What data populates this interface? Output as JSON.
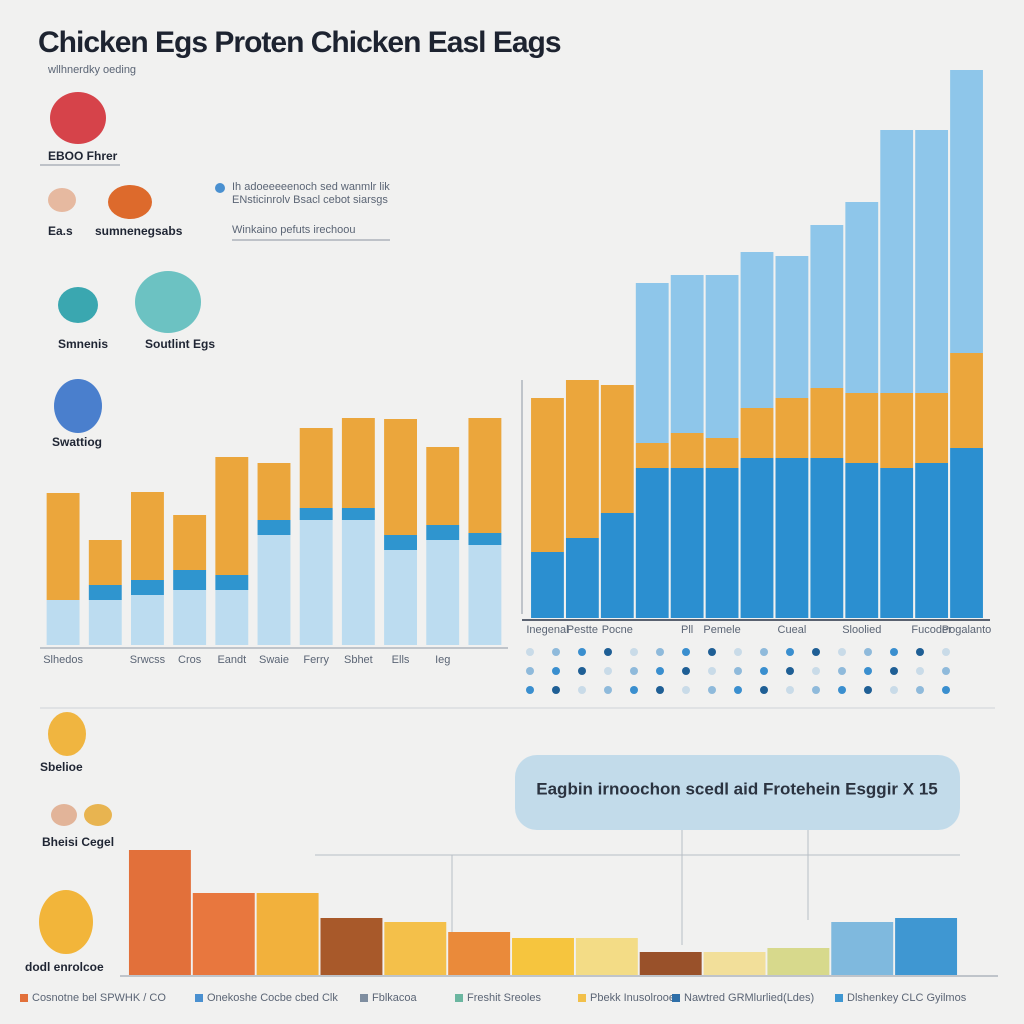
{
  "header": {
    "title": "Chicken Egs Proten Chicken Easl Eags",
    "subtitle": "wllhnerdky oeding"
  },
  "key": {
    "items": [
      "Ih adoeeeeenoch sed wanmlr lik",
      "ENsticinrolv Bsacl cebot siarsgs",
      "Winkaino pefuts irechoou"
    ]
  },
  "eggs": {
    "labels": [
      "EBOO Fhrer",
      "Ea.s",
      "sumnenegsabs",
      "Smnenis",
      "Soutlint Egs",
      "Swattiog",
      "Sbelioe",
      "Bheisi Cegel",
      "dodl enrolcoe"
    ]
  },
  "chart_data": [
    {
      "type": "bar",
      "stacked": true,
      "categories": [
        "Slhedos",
        null,
        "Srwcss",
        "Cros",
        "Eandt",
        "Swaie",
        "Ferry",
        "Sbhet",
        "Ells",
        "Ieg",
        null
      ],
      "series": [
        {
          "color": "#bcdcf0",
          "values": [
            45,
            45,
            50,
            55,
            55,
            110,
            125,
            125,
            95,
            105,
            100
          ]
        },
        {
          "color": "#2f95cf",
          "values": [
            0,
            15,
            15,
            20,
            15,
            15,
            12,
            12,
            15,
            15,
            12
          ]
        },
        {
          "color": "#eba63c",
          "values": [
            107,
            45,
            88,
            55,
            118,
            57,
            80,
            90,
            116,
            78,
            115
          ]
        }
      ],
      "ylim": [
        0,
        240
      ]
    },
    {
      "type": "bar",
      "stacked": true,
      "categories": [
        "Inegenal",
        "Pestte",
        "Pocne",
        null,
        "Pll",
        "Pemele",
        null,
        "Cueal",
        null,
        "Sloolied",
        null,
        "Fucoder",
        "Pogalanto"
      ],
      "series": [
        {
          "color": "#2b8fd0",
          "values": [
            66,
            80,
            105,
            150,
            150,
            150,
            160,
            160,
            160,
            155,
            150,
            155,
            170
          ]
        },
        {
          "color": "#eba63c",
          "values": [
            154,
            158,
            128,
            25,
            35,
            30,
            50,
            60,
            70,
            70,
            75,
            70,
            95
          ]
        },
        {
          "color": "#8ec6ea",
          "values": [
            0,
            0,
            0,
            160,
            158,
            163,
            156,
            142,
            163,
            191,
            263,
            263,
            283
          ]
        }
      ],
      "ylim": [
        0,
        560
      ]
    },
    {
      "type": "bar",
      "categories": [
        null,
        null,
        null,
        null,
        null,
        null,
        null,
        null,
        null,
        null,
        null,
        null,
        null
      ],
      "values": [
        125,
        82,
        82,
        57,
        53,
        43,
        37,
        37,
        23,
        23,
        27,
        53,
        57
      ],
      "colors": [
        "#e2703a",
        "#e8773e",
        "#f2b13c",
        "#a8592a",
        "#f4c04a",
        "#ea8a3a",
        "#f6c53e",
        "#f3dc86",
        "#99512a",
        "#f2df9a",
        "#d7d98c",
        "#7fb9de",
        "#3f97d2"
      ],
      "ylim": [
        0,
        130
      ]
    }
  ],
  "callout": {
    "text": "Eagbin irnoochon scedl aid Frotehein Esggir X 15"
  },
  "footer": {
    "items": [
      "Cosnotne bel SPWHK / CO",
      "Onekoshe Cocbe cbed Clk",
      "Fblkacoa",
      "Freshit Sreoles",
      "Pbekk Inusolrooe",
      "Nawtred GRMlurlied(Ldes)",
      "Dlshenkey CLC Gyilmos"
    ]
  }
}
